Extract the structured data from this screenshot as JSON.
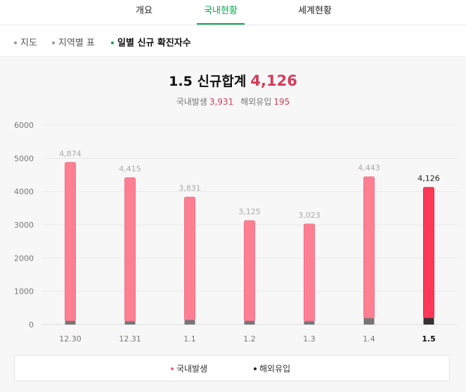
{
  "tabs": [
    {
      "label": "개요"
    },
    {
      "label": "국내현황"
    },
    {
      "label": "세계현황"
    }
  ],
  "subtabs": [
    {
      "label": "지도"
    },
    {
      "label": "지역별 표"
    },
    {
      "label": "일별 신규 확진자수"
    }
  ],
  "header": {
    "title": "1.5 신규합계",
    "total": "4,126",
    "domestic_label": "국내발생",
    "domestic_value": "3,931",
    "overseas_label": "해외유입",
    "overseas_value": "195"
  },
  "legend": {
    "domestic": "국내발생",
    "overseas": "해외유입"
  },
  "colors": {
    "accent_green": "#03a94d",
    "domestic_bar": "#ff7f92",
    "domestic_bar_selected": "#ff3858",
    "overseas_bar": "#777777",
    "overseas_bar_selected": "#333333",
    "highlight_text": "#d23c5a"
  },
  "chart_data": {
    "type": "bar",
    "stacked": true,
    "categories": [
      "12.30",
      "12.31",
      "1.1",
      "1.2",
      "1.3",
      "1.4",
      "1.5"
    ],
    "series": [
      {
        "name": "국내발생",
        "values": [
          4764,
          4317,
          3694,
          3016,
          2926,
          4251,
          3931
        ]
      },
      {
        "name": "해외유입",
        "values": [
          110,
          98,
          137,
          109,
          97,
          192,
          195
        ]
      }
    ],
    "totals": [
      4874,
      4415,
      3831,
      3125,
      3023,
      4443,
      4126
    ],
    "total_labels": [
      "4,874",
      "4,415",
      "3,831",
      "3,125",
      "3,023",
      "4,443",
      "4,126"
    ],
    "y_ticks": [
      "0",
      "1000",
      "2000",
      "3000",
      "4000",
      "5000",
      "6000"
    ],
    "ylim": [
      0,
      6000
    ],
    "selected_index": 6,
    "grid": true,
    "legend_position": "bottom"
  }
}
